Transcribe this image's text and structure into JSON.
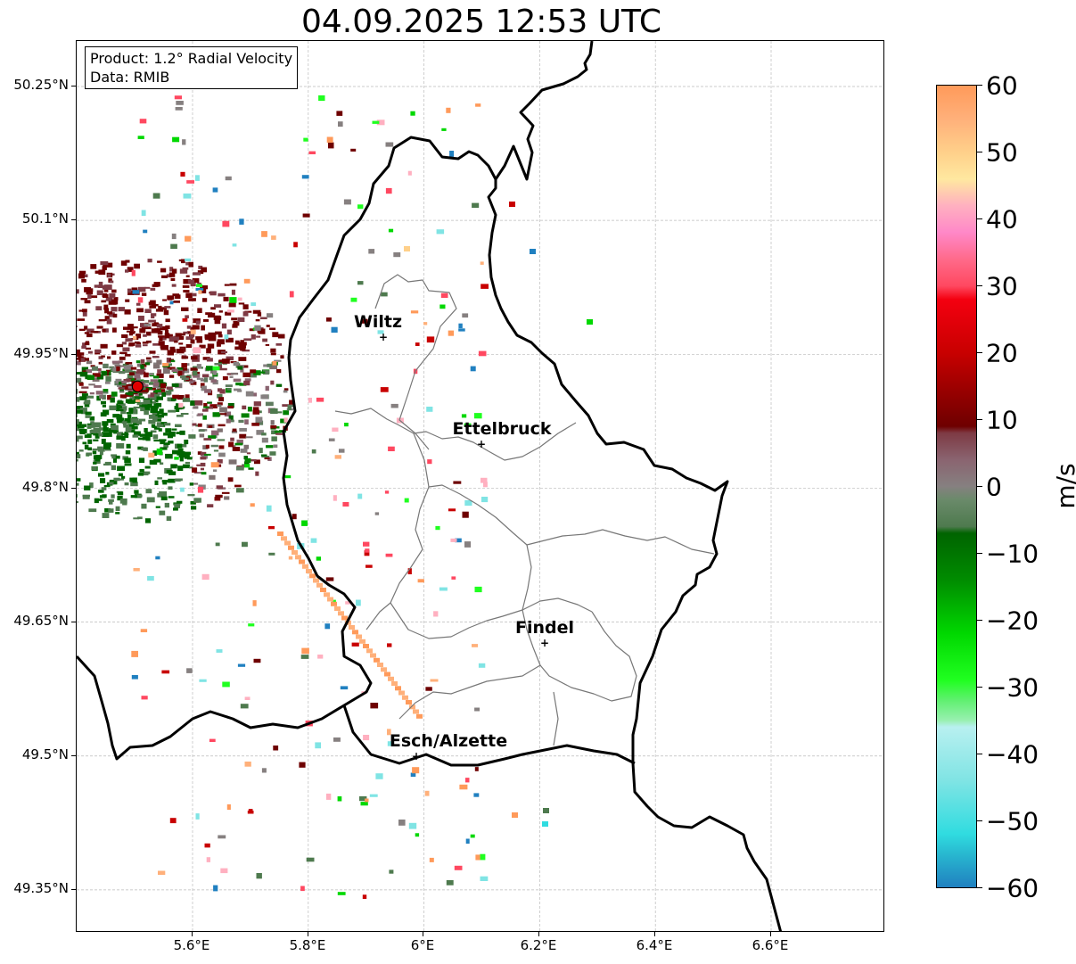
{
  "title": "04.09.2025 12:53 UTC",
  "info": {
    "product": "Product: 1.2° Radial Velocity",
    "data": "Data: RMIB"
  },
  "lat_labels": [
    "50.25°N",
    "50.1°N",
    "49.95°N",
    "49.8°N",
    "49.65°N",
    "49.5°N",
    "49.35°N"
  ],
  "lon_labels": [
    "5.6°E",
    "5.8°E",
    "6°E",
    "6.2°E",
    "6.4°E",
    "6.6°E"
  ],
  "cities": [
    {
      "name": "Wiltz",
      "lat": 49.967,
      "lon": 5.933
    },
    {
      "name": "Ettelbruck",
      "lat": 49.848,
      "lon": 6.103
    },
    {
      "name": "Findel",
      "lat": 49.626,
      "lon": 6.211
    },
    {
      "name": "Esch/Alzette",
      "lat": 49.497,
      "lon": 5.985
    }
  ],
  "radar_site": {
    "lat": 49.914,
    "lon": 5.505,
    "color": "#e00000"
  },
  "colorbar": {
    "unit": "m/s",
    "ticks": [
      "60",
      "50",
      "40",
      "30",
      "20",
      "10",
      "0",
      "−10",
      "−20",
      "−30",
      "−40",
      "−50",
      "−60"
    ],
    "range": [
      -60,
      60
    ],
    "stops": [
      {
        "v": 60,
        "c": "#ff9a5a"
      },
      {
        "v": 55,
        "c": "#ffb07a"
      },
      {
        "v": 50,
        "c": "#ffd08a"
      },
      {
        "v": 46,
        "c": "#ffe8a0"
      },
      {
        "v": 44,
        "c": "#ffcbb0"
      },
      {
        "v": 42,
        "c": "#ffb0c0"
      },
      {
        "v": 38,
        "c": "#ff88c8"
      },
      {
        "v": 34,
        "c": "#ff6a8a"
      },
      {
        "v": 30,
        "c": "#ff4860"
      },
      {
        "v": 28,
        "c": "#f40010"
      },
      {
        "v": 20,
        "c": "#c80000"
      },
      {
        "v": 14,
        "c": "#960000"
      },
      {
        "v": 9,
        "c": "#6e0000"
      },
      {
        "v": 8,
        "c": "#7e3a44"
      },
      {
        "v": 4,
        "c": "#8a6470"
      },
      {
        "v": 0,
        "c": "#868080"
      },
      {
        "v": -2,
        "c": "#6a8a6a"
      },
      {
        "v": -6,
        "c": "#4e7a4e"
      },
      {
        "v": -7,
        "c": "#006400"
      },
      {
        "v": -14,
        "c": "#008c00"
      },
      {
        "v": -22,
        "c": "#00d800"
      },
      {
        "v": -29,
        "c": "#20ff20"
      },
      {
        "v": -32,
        "c": "#60f070"
      },
      {
        "v": -35,
        "c": "#98f0b0"
      },
      {
        "v": -36,
        "c": "#b8f0f0"
      },
      {
        "v": -44,
        "c": "#80e4e4"
      },
      {
        "v": -52,
        "c": "#30dce0"
      },
      {
        "v": -55,
        "c": "#28b8d0"
      },
      {
        "v": -60,
        "c": "#2080c0"
      }
    ]
  }
}
